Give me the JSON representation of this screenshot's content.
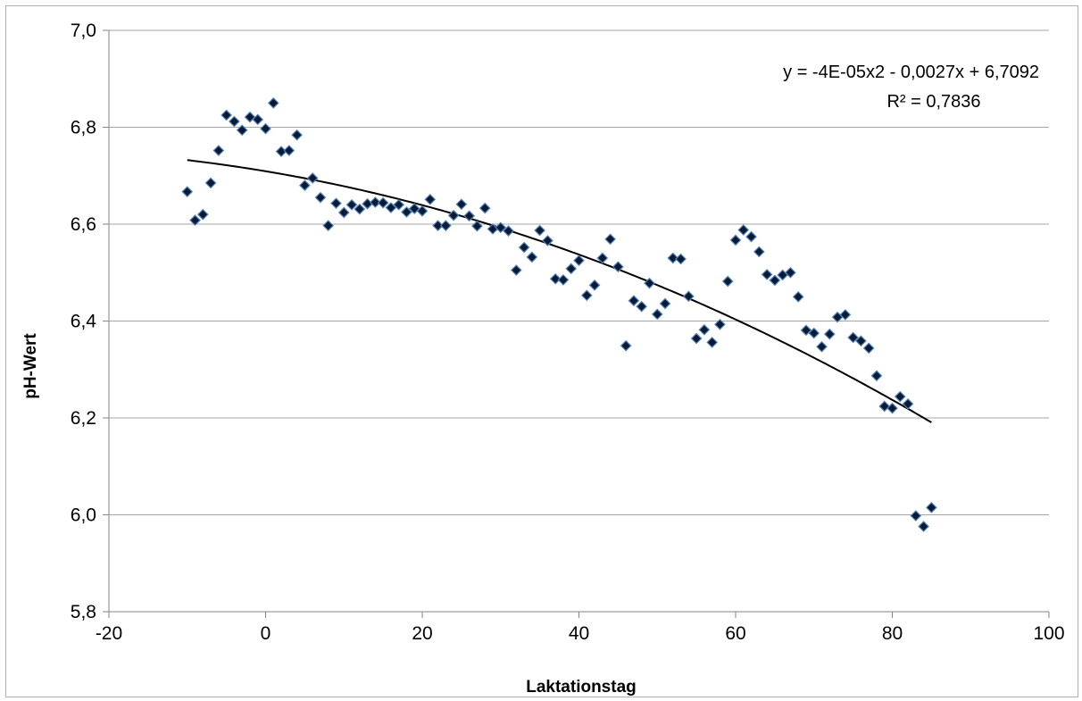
{
  "chart_data": {
    "type": "scatter",
    "title": "",
    "xlabel": "Laktationstag",
    "ylabel": "pH-Wert",
    "xlim": [
      -20,
      100
    ],
    "ylim": [
      5.8,
      7.0
    ],
    "x_ticks": [
      -20,
      0,
      20,
      40,
      60,
      80,
      100
    ],
    "x_tick_labels": [
      "-20",
      "0",
      "20",
      "40",
      "60",
      "80",
      "100"
    ],
    "y_ticks": [
      5.8,
      6.0,
      6.2,
      6.4,
      6.6,
      6.8,
      7.0
    ],
    "y_tick_labels": [
      "5,8",
      "6,0",
      "6,2",
      "6,4",
      "6,6",
      "6,8",
      "7,0"
    ],
    "grid": "horizontal",
    "legend": "none",
    "marker": "diamond",
    "marker_color": "#0b1a33",
    "marker_edge_color": "#4f81bd",
    "trendline": {
      "type": "polynomial",
      "order": 2,
      "coefficients": [
        -4e-05,
        -0.0027,
        6.7092
      ],
      "x_range": [
        -10,
        85
      ],
      "color": "#000000",
      "equation_label": "y = -4E-05x2 - 0,0027x + 6,7092",
      "r2_label": "R² = 0,7836"
    },
    "points": [
      {
        "x": -10,
        "y": 6.667
      },
      {
        "x": -9,
        "y": 6.608
      },
      {
        "x": -8,
        "y": 6.62
      },
      {
        "x": -7,
        "y": 6.685
      },
      {
        "x": -6,
        "y": 6.752
      },
      {
        "x": -5,
        "y": 6.825
      },
      {
        "x": -4,
        "y": 6.812
      },
      {
        "x": -3,
        "y": 6.794
      },
      {
        "x": -2,
        "y": 6.821
      },
      {
        "x": -1,
        "y": 6.816
      },
      {
        "x": 0,
        "y": 6.797
      },
      {
        "x": 1,
        "y": 6.85
      },
      {
        "x": 2,
        "y": 6.75
      },
      {
        "x": 3,
        "y": 6.752
      },
      {
        "x": 4,
        "y": 6.784
      },
      {
        "x": 5,
        "y": 6.68
      },
      {
        "x": 6,
        "y": 6.695
      },
      {
        "x": 7,
        "y": 6.655
      },
      {
        "x": 8,
        "y": 6.597
      },
      {
        "x": 9,
        "y": 6.643
      },
      {
        "x": 10,
        "y": 6.624
      },
      {
        "x": 11,
        "y": 6.64
      },
      {
        "x": 12,
        "y": 6.631
      },
      {
        "x": 13,
        "y": 6.642
      },
      {
        "x": 14,
        "y": 6.645
      },
      {
        "x": 15,
        "y": 6.644
      },
      {
        "x": 16,
        "y": 6.634
      },
      {
        "x": 17,
        "y": 6.64
      },
      {
        "x": 18,
        "y": 6.625
      },
      {
        "x": 19,
        "y": 6.632
      },
      {
        "x": 20,
        "y": 6.627
      },
      {
        "x": 21,
        "y": 6.651
      },
      {
        "x": 22,
        "y": 6.597
      },
      {
        "x": 23,
        "y": 6.597
      },
      {
        "x": 24,
        "y": 6.618
      },
      {
        "x": 25,
        "y": 6.641
      },
      {
        "x": 26,
        "y": 6.617
      },
      {
        "x": 27,
        "y": 6.596
      },
      {
        "x": 28,
        "y": 6.633
      },
      {
        "x": 29,
        "y": 6.59
      },
      {
        "x": 30,
        "y": 6.593
      },
      {
        "x": 31,
        "y": 6.586
      },
      {
        "x": 32,
        "y": 6.505
      },
      {
        "x": 33,
        "y": 6.552
      },
      {
        "x": 34,
        "y": 6.532
      },
      {
        "x": 35,
        "y": 6.587
      },
      {
        "x": 36,
        "y": 6.566
      },
      {
        "x": 37,
        "y": 6.487
      },
      {
        "x": 38,
        "y": 6.485
      },
      {
        "x": 39,
        "y": 6.508
      },
      {
        "x": 40,
        "y": 6.525
      },
      {
        "x": 41,
        "y": 6.453
      },
      {
        "x": 42,
        "y": 6.474
      },
      {
        "x": 43,
        "y": 6.53
      },
      {
        "x": 44,
        "y": 6.569
      },
      {
        "x": 45,
        "y": 6.512
      },
      {
        "x": 46,
        "y": 6.349
      },
      {
        "x": 47,
        "y": 6.442
      },
      {
        "x": 48,
        "y": 6.43
      },
      {
        "x": 49,
        "y": 6.478
      },
      {
        "x": 50,
        "y": 6.414
      },
      {
        "x": 51,
        "y": 6.436
      },
      {
        "x": 52,
        "y": 6.53
      },
      {
        "x": 53,
        "y": 6.528
      },
      {
        "x": 54,
        "y": 6.451
      },
      {
        "x": 55,
        "y": 6.364
      },
      {
        "x": 56,
        "y": 6.382
      },
      {
        "x": 57,
        "y": 6.356
      },
      {
        "x": 58,
        "y": 6.393
      },
      {
        "x": 59,
        "y": 6.482
      },
      {
        "x": 60,
        "y": 6.567
      },
      {
        "x": 61,
        "y": 6.588
      },
      {
        "x": 62,
        "y": 6.574
      },
      {
        "x": 63,
        "y": 6.543
      },
      {
        "x": 64,
        "y": 6.496
      },
      {
        "x": 65,
        "y": 6.484
      },
      {
        "x": 66,
        "y": 6.495
      },
      {
        "x": 67,
        "y": 6.5
      },
      {
        "x": 68,
        "y": 6.45
      },
      {
        "x": 69,
        "y": 6.381
      },
      {
        "x": 70,
        "y": 6.375
      },
      {
        "x": 71,
        "y": 6.347
      },
      {
        "x": 72,
        "y": 6.373
      },
      {
        "x": 73,
        "y": 6.408
      },
      {
        "x": 74,
        "y": 6.413
      },
      {
        "x": 75,
        "y": 6.366
      },
      {
        "x": 76,
        "y": 6.359
      },
      {
        "x": 77,
        "y": 6.344
      },
      {
        "x": 78,
        "y": 6.287
      },
      {
        "x": 79,
        "y": 6.224
      },
      {
        "x": 80,
        "y": 6.22
      },
      {
        "x": 81,
        "y": 6.244
      },
      {
        "x": 82,
        "y": 6.229
      },
      {
        "x": 83,
        "y": 5.998
      },
      {
        "x": 84,
        "y": 5.976
      },
      {
        "x": 85,
        "y": 6.015
      }
    ]
  }
}
